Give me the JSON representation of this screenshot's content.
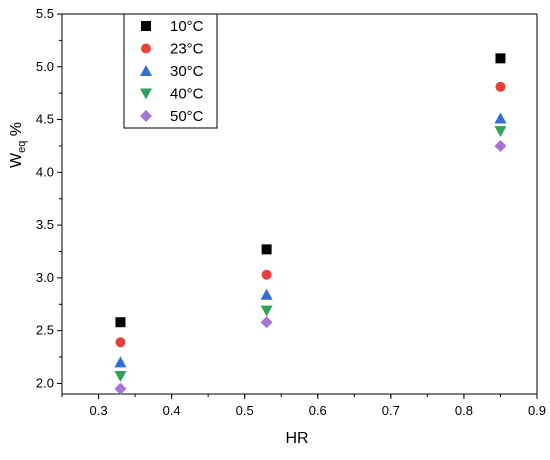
{
  "chart_data": {
    "type": "scatter",
    "xlabel": "HR",
    "ylabel_main": "W",
    "ylabel_sub": "eq",
    "ylabel_suffix": " %",
    "xlim": [
      0.25,
      0.9
    ],
    "ylim": [
      1.9,
      5.5
    ],
    "xticks": [
      0.3,
      0.4,
      0.5,
      0.6,
      0.7,
      0.8,
      0.9
    ],
    "xtick_labels": [
      "0.3",
      "0.4",
      "0.5",
      "0.6",
      "0.7",
      "0.8",
      "0.9"
    ],
    "yticks": [
      2.0,
      2.5,
      3.0,
      3.5,
      4.0,
      4.5,
      5.0,
      5.5
    ],
    "ytick_labels": [
      "2.0",
      "2.5",
      "3.0",
      "3.5",
      "4.0",
      "4.5",
      "5.0",
      "5.5"
    ],
    "grid": false,
    "legend_position": "top-left",
    "x": [
      0.33,
      0.53,
      0.85
    ],
    "series": [
      {
        "name": "10°C",
        "values": [
          2.58,
          3.27,
          5.08
        ],
        "marker": "square",
        "color": "#000000"
      },
      {
        "name": "23°C",
        "values": [
          2.39,
          3.03,
          4.81
        ],
        "marker": "circle",
        "color": "#e8413b"
      },
      {
        "name": "30°C",
        "values": [
          2.2,
          2.84,
          4.51
        ],
        "marker": "triangle-up",
        "color": "#2f6fd4"
      },
      {
        "name": "40°C",
        "values": [
          2.07,
          2.69,
          4.39
        ],
        "marker": "triangle-down",
        "color": "#2fa35a"
      },
      {
        "name": "50°C",
        "values": [
          1.95,
          2.58,
          4.25
        ],
        "marker": "diamond",
        "color": "#a674d6"
      }
    ]
  }
}
